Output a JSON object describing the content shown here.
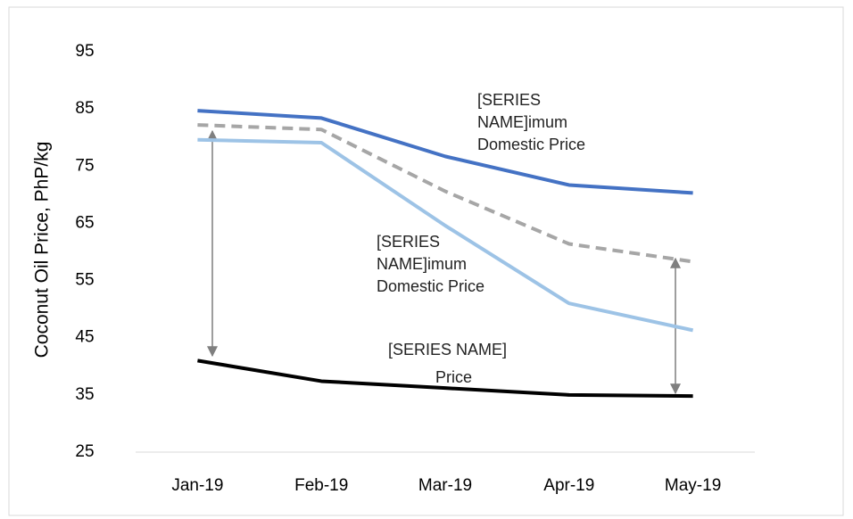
{
  "chart_data": {
    "type": "line",
    "y_label": "Coconut Oil Price, PhP/kg",
    "categories": [
      "Jan-19",
      "Feb-19",
      "Mar-19",
      "Apr-19",
      "May-19"
    ],
    "series": [
      {
        "color": "#4472c4",
        "dash": false,
        "values": [
          84.7,
          83.4,
          76.7,
          71.7,
          70.3
        ]
      },
      {
        "color": "#a6a6a6",
        "dash": true,
        "values": [
          82.2,
          81.4,
          70.6,
          61.4,
          58.3
        ]
      },
      {
        "color": "#9dc3e6",
        "dash": false,
        "values": [
          79.6,
          79.1,
          64.6,
          51.0,
          46.3
        ]
      },
      {
        "color": "#000000",
        "dash": false,
        "values": [
          41.0,
          37.4,
          36.2,
          35.0,
          34.8
        ]
      }
    ],
    "annotations": [
      {
        "lines": [
          "[SERIES",
          "NAME]imum",
          "Domestic Price"
        ]
      },
      {
        "lines": [
          "[SERIES",
          "NAME]imum",
          "Domestic Price"
        ]
      },
      {
        "lines": [
          "[SERIES NAME]",
          "Price"
        ]
      }
    ],
    "ylim": [
      25,
      95
    ],
    "yticks": [
      25,
      35,
      45,
      55,
      65,
      75,
      85,
      95
    ],
    "grid": false
  }
}
